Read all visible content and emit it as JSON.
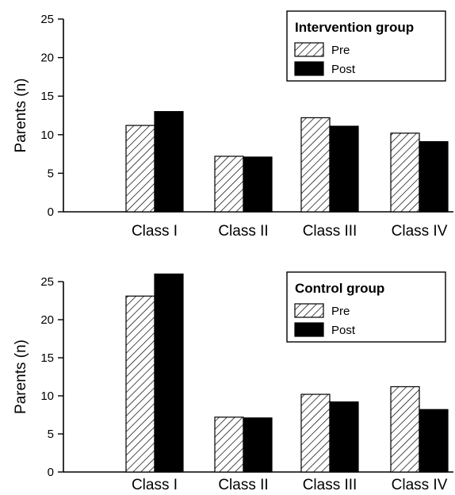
{
  "chart_data": [
    {
      "type": "bar",
      "title": "",
      "ylabel": "Parents (n)",
      "xlabel": "",
      "ylim": [
        0,
        25
      ],
      "yticks": [
        0,
        5,
        10,
        15,
        20,
        25
      ],
      "categories": [
        "Class I",
        "Class II",
        "Class III",
        "Class IV"
      ],
      "legend": {
        "title": "Intervention group",
        "placement": "top-right"
      },
      "series": [
        {
          "name": "Pre",
          "pattern": "hatched",
          "values": [
            11.2,
            7.2,
            12.2,
            10.2
          ]
        },
        {
          "name": "Post",
          "pattern": "solid",
          "color": "#000000",
          "values": [
            13.0,
            7.1,
            11.1,
            9.1
          ]
        }
      ],
      "grid": false
    },
    {
      "type": "bar",
      "title": "",
      "ylabel": "Parents (n)",
      "xlabel": "",
      "ylim": [
        0,
        25
      ],
      "yticks": [
        0,
        5,
        10,
        15,
        20,
        25
      ],
      "categories": [
        "Class I",
        "Class II",
        "Class III",
        "Class IV"
      ],
      "legend": {
        "title": "Control group",
        "placement": "top-right"
      },
      "series": [
        {
          "name": "Pre",
          "pattern": "hatched",
          "values": [
            23.1,
            7.2,
            10.2,
            11.2
          ]
        },
        {
          "name": "Post",
          "pattern": "solid",
          "color": "#000000",
          "values": [
            26.0,
            7.1,
            9.2,
            8.2
          ]
        }
      ],
      "grid": false
    }
  ]
}
